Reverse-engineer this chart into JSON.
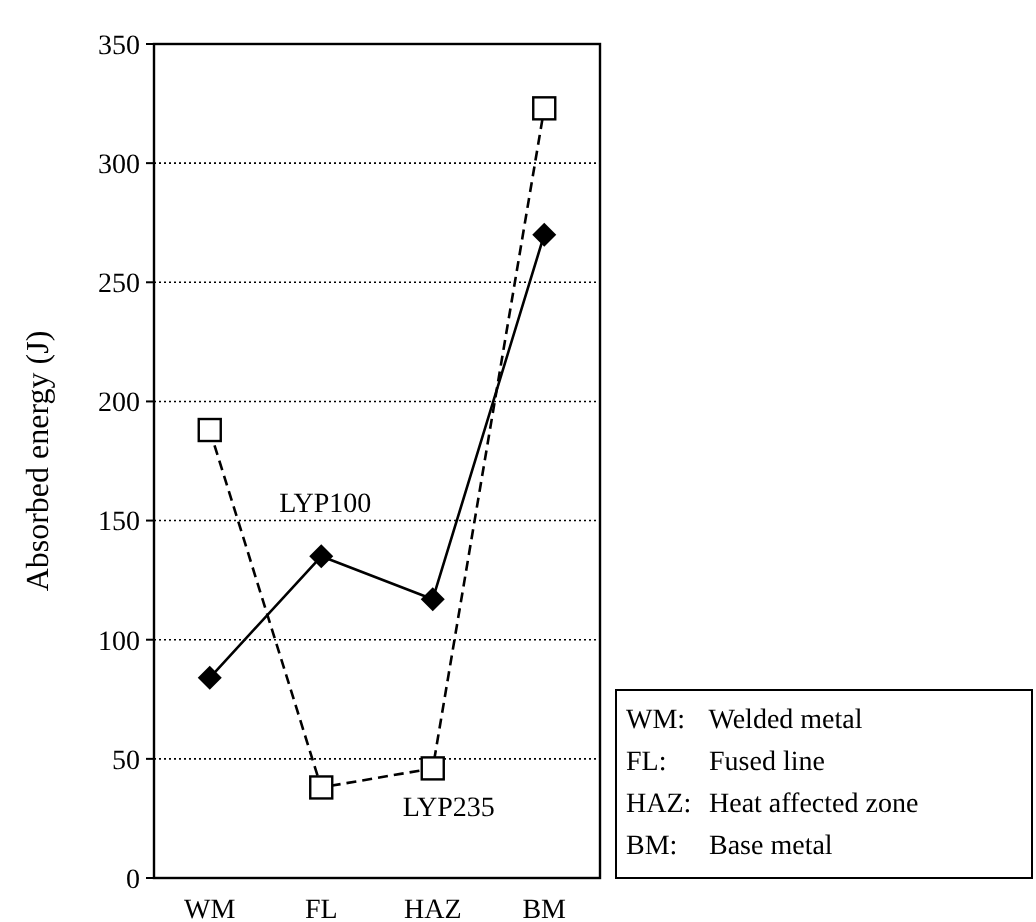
{
  "chart_data": {
    "type": "line",
    "ylabel": "Absorbed energy (J)",
    "categories": [
      "WM",
      "FL",
      "HAZ",
      "BM"
    ],
    "series": [
      {
        "name": "LYP100",
        "color": "#000000",
        "values": [
          84,
          135,
          117,
          270
        ],
        "marker": "diamond",
        "line_style": "solid"
      },
      {
        "name": "LYP235",
        "color": "#000000",
        "values": [
          188,
          38,
          46,
          323
        ],
        "marker": "square",
        "line_style": "dashed"
      }
    ],
    "ylim": [
      0,
      350
    ],
    "yticks": [
      0,
      50,
      100,
      150,
      200,
      250,
      300,
      350
    ],
    "grid": "y",
    "annotations": [
      "WM: Welded metal",
      "FL: Fused line",
      "HAZ: Heat affected zone",
      "BM: Base metal"
    ]
  }
}
